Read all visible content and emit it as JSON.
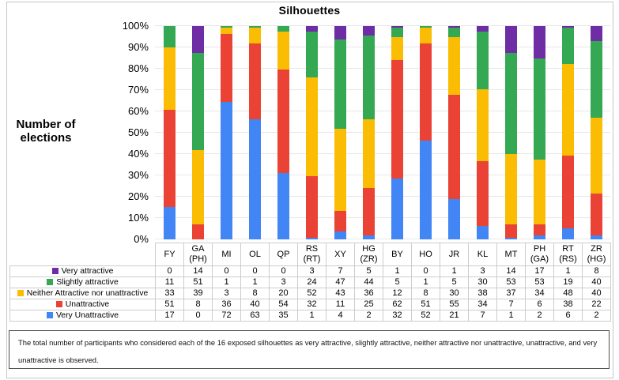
{
  "title": "Silhouettes",
  "y_axis_title": "Number of elections",
  "caption": "The total number of participants who considered each of the 16 exposed silhouettes as very attractive, slightly attractive, neither attractive nor unattractive, unattractive, and very unattractive is observed.",
  "chart_data": {
    "type": "bar",
    "subtype": "stacked-100-percent",
    "title": "Silhouettes",
    "xlabel": "",
    "ylabel": "Number of elections",
    "ylim": [
      0,
      100
    ],
    "ytick_percent": [
      0,
      10,
      20,
      30,
      40,
      50,
      60,
      70,
      80,
      90,
      100
    ],
    "ytick_suffix": "%",
    "grid": true,
    "legend_position": "left-of-table-rows",
    "column_total": 112,
    "categories": [
      "FY",
      "GA (PH)",
      "MI",
      "OL",
      "QP",
      "RS (RT)",
      "XY",
      "HG (ZR)",
      "BY",
      "HO",
      "JR",
      "KL",
      "MT",
      "PH (GA)",
      "RT (RS)",
      "ZR (HG)"
    ],
    "stack_order_bottom_to_top": [
      "Very Unattractive",
      "Unattractive",
      "Neither Attractive nor unattractive",
      "Slightly attractive",
      "Very attractive"
    ],
    "series": [
      {
        "name": "Very attractive",
        "color": "#6E2CA5",
        "values": [
          0,
          14,
          0,
          0,
          0,
          3,
          7,
          5,
          1,
          0,
          1,
          3,
          14,
          17,
          1,
          8
        ]
      },
      {
        "name": "Slightly attractive",
        "color": "#34A853",
        "values": [
          11,
          51,
          1,
          1,
          3,
          24,
          47,
          44,
          5,
          1,
          5,
          30,
          53,
          53,
          19,
          40
        ]
      },
      {
        "name": "Neither Attractive nor unattractive",
        "color": "#FBBC04",
        "values": [
          33,
          39,
          3,
          8,
          20,
          52,
          43,
          36,
          12,
          8,
          30,
          38,
          37,
          34,
          48,
          40
        ]
      },
      {
        "name": "Unattractive",
        "color": "#EA4335",
        "values": [
          51,
          8,
          36,
          40,
          54,
          32,
          11,
          25,
          62,
          51,
          55,
          34,
          7,
          6,
          38,
          22
        ]
      },
      {
        "name": "Very Unattractive",
        "color": "#4285F4",
        "values": [
          17,
          0,
          72,
          63,
          35,
          1,
          4,
          2,
          32,
          52,
          21,
          7,
          1,
          2,
          6,
          2
        ]
      }
    ],
    "colors": {
      "very_attractive": "#6E2CA5",
      "slightly_attractive": "#34A853",
      "neither": "#FBBC04",
      "unattractive": "#EA4335",
      "very_unattractive": "#4285F4",
      "gridline": "#e7e7e7",
      "table_border": "#cccccc",
      "caption_border": "#4d4d4d"
    }
  }
}
